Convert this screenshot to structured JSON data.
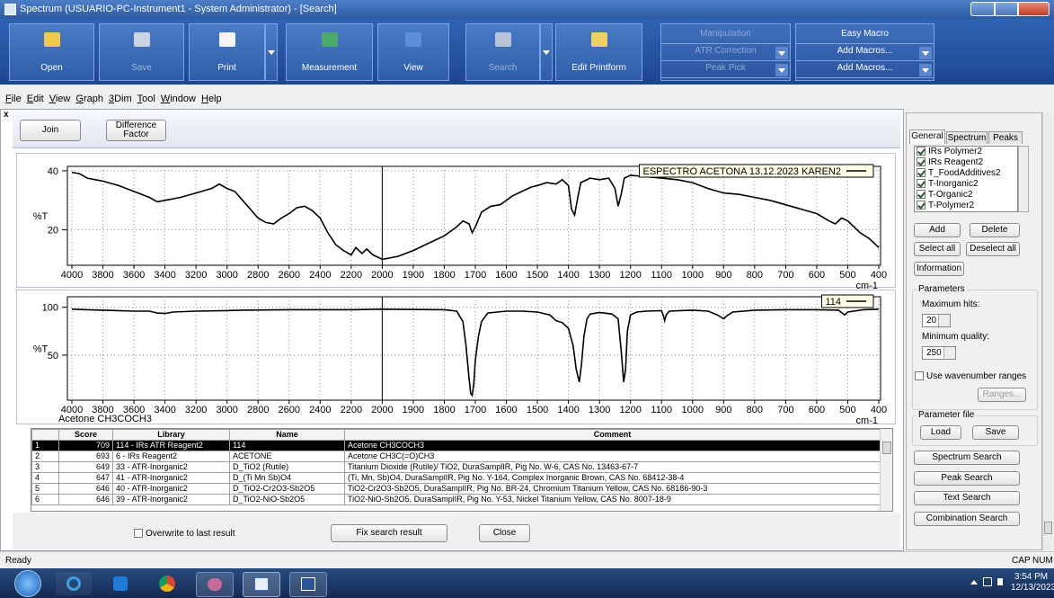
{
  "window": {
    "title": "Spectrum (USUARIO-PC-Instrument1 - System Administrator) - [Search]"
  },
  "toolbar": {
    "buttons": [
      "Open",
      "Save",
      "Print",
      "Measurement",
      "View",
      "Search",
      "Edit Printform"
    ],
    "manipulation": [
      "Manipulation",
      "ATR Correction",
      "Peak Pick"
    ],
    "easy_macro": [
      "Easy Macro",
      "Add Macros...",
      "Add Macros..."
    ]
  },
  "menu": [
    "File",
    "Edit",
    "View",
    "Graph",
    "3Dim",
    "Tool",
    "Window",
    "Help"
  ],
  "action_buttons": [
    "Join",
    "Difference Factor"
  ],
  "charts": [
    {
      "type": "line",
      "legend": "ESPECTRO ACETONA 13.12.2023  KAREN2",
      "y_label": "%T",
      "x_label": "cm-1",
      "xlim": [
        4000,
        400
      ],
      "xbreak": 2000,
      "xbreak_scale": 2,
      "xticks": [
        4000,
        3800,
        3600,
        3400,
        3200,
        3000,
        2800,
        2600,
        2400,
        2200,
        2000,
        1900,
        1800,
        1700,
        1600,
        1500,
        1400,
        1300,
        1200,
        1100,
        1000,
        900,
        800,
        700,
        600,
        500,
        400
      ],
      "ylim": [
        8,
        41.5
      ],
      "yticks": [
        20,
        40
      ],
      "grid": true,
      "cursor": 2000,
      "color": "#000000",
      "x": [
        4000,
        3950,
        3900,
        3850,
        3800,
        3700,
        3600,
        3500,
        3450,
        3400,
        3300,
        3200,
        3100,
        3050,
        3000,
        2950,
        2900,
        2850,
        2800,
        2750,
        2700,
        2650,
        2600,
        2550,
        2500,
        2450,
        2400,
        2350,
        2300,
        2250,
        2200,
        2170,
        2130,
        2100,
        2060,
        2000,
        1950,
        1900,
        1850,
        1800,
        1760,
        1740,
        1720,
        1710,
        1700,
        1680,
        1650,
        1620,
        1600,
        1580,
        1550,
        1520,
        1500,
        1470,
        1440,
        1420,
        1400,
        1390,
        1380,
        1370,
        1360,
        1330,
        1300,
        1270,
        1250,
        1240,
        1230,
        1220,
        1200,
        1150,
        1100,
        1050,
        1000,
        950,
        900,
        850,
        800,
        750,
        700,
        650,
        600,
        560,
        540,
        520,
        500,
        460,
        430,
        400
      ],
      "values": [
        39.5,
        39,
        37.5,
        37,
        36.5,
        35,
        33,
        31,
        29.5,
        30,
        31,
        32.5,
        34,
        35.5,
        34,
        33,
        30,
        27,
        24,
        22.5,
        22,
        24,
        25.5,
        27.5,
        28,
        26.5,
        24,
        19,
        15,
        13,
        11.5,
        14,
        12,
        13.5,
        11.5,
        10,
        11,
        13,
        15.5,
        18,
        21,
        23,
        22,
        19,
        21,
        26,
        28,
        28.5,
        30,
        31.5,
        33,
        34.5,
        35,
        36,
        35.5,
        37,
        35,
        27,
        25,
        31,
        36,
        37.5,
        37,
        37.5,
        34,
        28,
        32,
        37.5,
        38.5,
        38,
        37.5,
        37,
        36,
        34,
        32.5,
        32,
        31,
        30,
        28.5,
        27,
        25.5,
        23,
        22,
        24,
        23,
        19,
        17,
        14
      ]
    },
    {
      "type": "line",
      "legend": "114",
      "y_label": "%T",
      "x_label": "cm-1",
      "caption": "Acetone  CH3COCH3",
      "xlim": [
        4000,
        400
      ],
      "xbreak": 2000,
      "xbreak_scale": 2,
      "xticks": [
        4000,
        3800,
        3600,
        3400,
        3200,
        3000,
        2800,
        2600,
        2400,
        2200,
        2000,
        1900,
        1800,
        1700,
        1600,
        1500,
        1400,
        1300,
        1200,
        1100,
        1000,
        900,
        800,
        700,
        600,
        500,
        400
      ],
      "ylim": [
        3,
        111
      ],
      "yticks": [
        50,
        100
      ],
      "grid": true,
      "cursor": 2000,
      "color": "#000000",
      "x": [
        4000,
        3900,
        3800,
        3600,
        3500,
        3450,
        3400,
        3350,
        3200,
        3000,
        2900,
        2600,
        2200,
        2000,
        1800,
        1760,
        1740,
        1730,
        1720,
        1715,
        1710,
        1705,
        1700,
        1690,
        1680,
        1660,
        1600,
        1550,
        1500,
        1460,
        1440,
        1420,
        1400,
        1385,
        1375,
        1365,
        1358,
        1350,
        1340,
        1330,
        1300,
        1260,
        1240,
        1230,
        1222,
        1216,
        1210,
        1200,
        1180,
        1150,
        1100,
        1095,
        1090,
        1085,
        1075,
        1000,
        950,
        920,
        900,
        890,
        870,
        800,
        700,
        600,
        530,
        510,
        500,
        450,
        400
      ],
      "values": [
        98,
        97.5,
        97,
        96,
        96,
        94,
        93.5,
        95,
        96,
        96.5,
        97,
        97.5,
        97.5,
        98,
        97.5,
        96,
        85,
        60,
        25,
        10,
        8,
        20,
        45,
        70,
        85,
        94,
        96,
        96,
        95,
        92,
        86,
        84,
        78,
        60,
        35,
        22,
        40,
        70,
        88,
        93,
        94.5,
        93,
        88,
        55,
        22,
        35,
        75,
        92,
        95,
        96,
        96.5,
        92,
        86,
        92,
        96,
        97,
        96,
        92,
        88,
        91,
        95,
        97,
        97.5,
        97.5,
        97,
        92,
        95,
        97.5,
        98
      ]
    }
  ],
  "results": {
    "columns": [
      "Score",
      "Library",
      "Name",
      "Comment"
    ],
    "rows": [
      [
        1,
        709,
        "114 - IRs ATR Reagent2",
        "114",
        "Acetone  CH3COCH3"
      ],
      [
        2,
        693,
        "6 - IRs Reagent2",
        "ACETONE",
        "Acetone  CH3C(=O)CH3"
      ],
      [
        3,
        649,
        "33 - ATR-Inorganic2",
        "D_TiO2 (Rutile)",
        "Titanium Dioxide (Rutile)/ TiO2, DuraSamplIR, Pig No. W-6, CAS No. 13463-67-7"
      ],
      [
        4,
        647,
        "41 - ATR-Inorganic2",
        "D_(Ti Mn Sb)O4",
        "(Ti, Mn, Sb)O4, DuraSamplIR, Pig No. Y-164, Complex Inorganic Brown, CAS No. 68412-38-4"
      ],
      [
        5,
        646,
        "40 - ATR-Inorganic2",
        "D_TiO2-Cr2O3-Sb2O5",
        "TiO2-Cr2O3-Sb2O5, DuraSamplIR, Pig No. BR-24, Chromium Titanium Yellow, CAS No. 68186-90-3"
      ],
      [
        6,
        646,
        "39 - ATR-Inorganic2",
        "D_TiO2-NiO-Sb2O5",
        "TiO2-NiO-Sb2O5, DuraSamplIR, Pig No. Y-53, Nickel Titanium Yellow, CAS No. 8007-18-9"
      ]
    ]
  },
  "bottom_bar": {
    "checkbox": "Overwrite to last result",
    "buttons": [
      "Fix search result",
      "Close"
    ]
  },
  "side_panel": {
    "tabs": [
      "General",
      "Spectrum",
      "Peaks"
    ],
    "libraries": [
      "IRs Polymer2",
      "IRs Reagent2",
      "T_FoodAdditives2",
      "T-Inorganic2",
      "T-Organic2",
      "T-Polymer2"
    ],
    "list_buttons": [
      "Add",
      "Delete",
      "Select all",
      "Deselect all",
      "Information"
    ],
    "parameters": {
      "title": "Parameters",
      "max_hits_label": "Maximum hits:",
      "max_hits": 20,
      "min_quality_label": "Minimum quality:",
      "min_quality": 250,
      "ranges_checkbox": "Use wavenumber ranges",
      "ranges_button": "Ranges..."
    },
    "parameter_file": {
      "title": "Parameter file",
      "buttons": [
        "Load",
        "Save"
      ]
    },
    "search_buttons": [
      "Spectrum Search",
      "Peak Search",
      "Text Search",
      "Combination Search"
    ]
  },
  "status": {
    "text": "Ready",
    "indicators": [
      "CAP",
      "NUM"
    ]
  },
  "taskbar": {
    "time": "3:54 PM",
    "date": "12/13/2023"
  }
}
